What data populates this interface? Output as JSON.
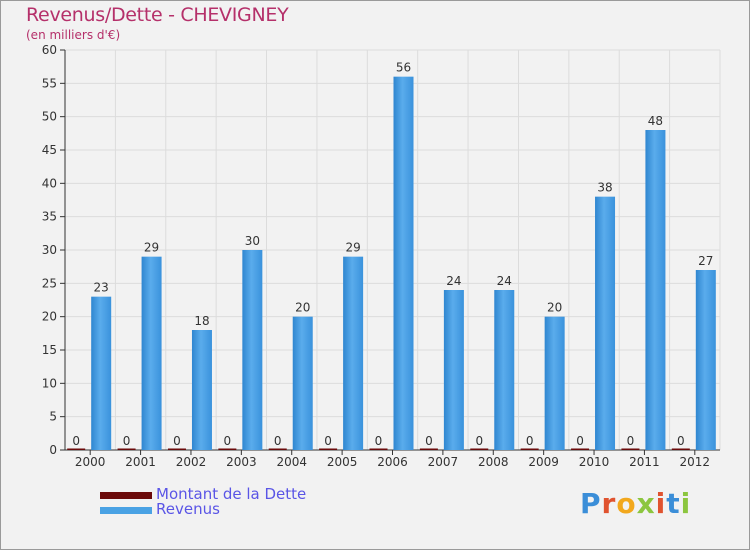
{
  "chart_data": {
    "type": "bar",
    "title": "Revenus/Dette - CHEVIGNEY",
    "subtitle": "(en milliers d'€)",
    "categories": [
      "2000",
      "2001",
      "2002",
      "2003",
      "2004",
      "2005",
      "2006",
      "2007",
      "2008",
      "2009",
      "2010",
      "2011",
      "2012"
    ],
    "series": [
      {
        "name": "Montant de la Dette",
        "color": "#6b0a0a",
        "values": [
          0,
          0,
          0,
          0,
          0,
          0,
          0,
          0,
          0,
          0,
          0,
          0,
          0
        ]
      },
      {
        "name": "Revenus",
        "color": "#4aa2e4",
        "values": [
          23,
          29,
          18,
          30,
          20,
          29,
          56,
          24,
          24,
          20,
          38,
          48,
          27
        ]
      }
    ],
    "ylim": [
      0,
      60
    ],
    "yticks": [
      0,
      5,
      10,
      15,
      20,
      25,
      30,
      35,
      40,
      45,
      50,
      55,
      60
    ],
    "grid": true,
    "legend_position": "bottom-left"
  },
  "logo": {
    "text": "Proxiti"
  }
}
